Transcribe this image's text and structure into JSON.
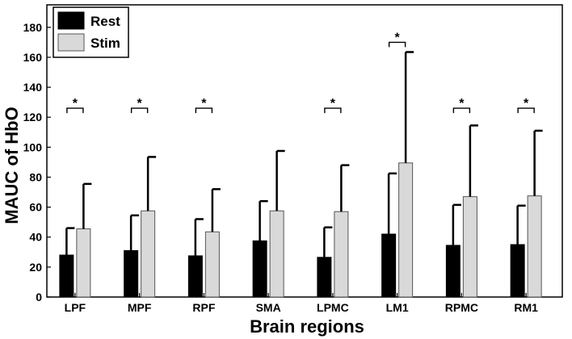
{
  "chart_data": {
    "type": "bar",
    "xlabel": "Brain regions",
    "ylabel": "MAUC of HbO",
    "ylim": [
      0,
      195
    ],
    "yticks": [
      0,
      20,
      40,
      60,
      80,
      100,
      120,
      140,
      160,
      180
    ],
    "categories": [
      "LPF",
      "MPF",
      "RPF",
      "SMA",
      "LPMC",
      "LM1",
      "RPMC",
      "RM1"
    ],
    "series": [
      {
        "name": "Rest",
        "color": "#000000",
        "values": [
          28,
          31,
          27.5,
          37.5,
          26.5,
          42,
          34.5,
          35
        ],
        "error_upper": [
          46,
          54.5,
          52,
          64,
          46.5,
          82.5,
          61.5,
          61
        ]
      },
      {
        "name": "Stim",
        "color": "#d9d9d9",
        "values": [
          45.5,
          57.5,
          43.5,
          57.5,
          57,
          89.5,
          67,
          67.5
        ],
        "error_upper": [
          75.5,
          93.5,
          72,
          97.5,
          88,
          163.5,
          114.5,
          111
        ]
      }
    ],
    "significance": {
      "marker": "*",
      "categories": [
        "LPF",
        "MPF",
        "RPF",
        "LPMC",
        "LM1",
        "RPMC",
        "RM1"
      ],
      "bracket_y": [
        126,
        126,
        126,
        126,
        170,
        126,
        126
      ]
    },
    "legend_position": "top-left",
    "grid": false
  }
}
